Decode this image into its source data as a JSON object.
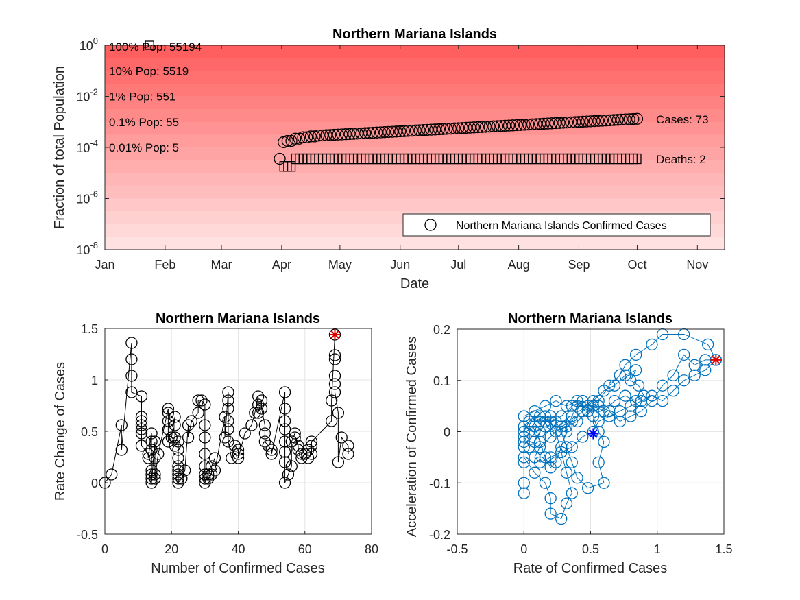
{
  "chart_data": [
    {
      "type": "scatter",
      "title": "Northern Mariana Islands",
      "xlabel": "Date",
      "ylabel": "Fraction of total Population",
      "yscale": "log",
      "ylim": [
        1e-08,
        1
      ],
      "xlim": [
        "2020-01-01",
        "2020-11-15"
      ],
      "x_ticks": [
        "Jan",
        "Feb",
        "Mar",
        "Apr",
        "May",
        "Jun",
        "Jul",
        "Aug",
        "Sep",
        "Oct",
        "Nov"
      ],
      "x_tick_dates": [
        "2020-01-01",
        "2020-02-01",
        "2020-03-01",
        "2020-04-01",
        "2020-05-01",
        "2020-06-01",
        "2020-07-01",
        "2020-08-01",
        "2020-09-01",
        "2020-10-01",
        "2020-11-01"
      ],
      "y_ticks": [
        "10^0",
        "10^-2",
        "10^-4",
        "10^-6",
        "10^-8"
      ],
      "y_tick_values": [
        1,
        0.01,
        0.0001,
        1e-06,
        1e-08
      ],
      "population_bands": [
        {
          "label": "100% Pop: 55194",
          "fraction": 1
        },
        {
          "label": "10% Pop: 5519",
          "fraction": 0.1
        },
        {
          "label": "1% Pop: 551",
          "fraction": 0.01
        },
        {
          "label": "0.1% Pop: 55",
          "fraction": 0.001
        },
        {
          "label": "0.01% Pop: 5",
          "fraction": 0.0001
        }
      ],
      "series": [
        {
          "name": "Northern Mariana Islands Confirmed Cases",
          "marker": "circle",
          "start_date": "2020-03-31",
          "end_date": "2020-09-30",
          "start_value": 3.6e-05,
          "early_values": [
            3.6e-05,
            0.00016,
            0.00018,
            0.00018,
            0.00022,
            0.00022,
            0.00025,
            0.00025,
            0.00027,
            0.00027,
            0.00029
          ],
          "end_value": 0.00132
        },
        {
          "marker": "square",
          "start_date": "2020-04-02",
          "end_date": "2020-09-30",
          "early_values": [
            1.8e-05,
            1.8e-05,
            1.8e-05,
            3.6e-05
          ],
          "end_value": 3.6e-05
        }
      ],
      "annotations": [
        {
          "label": "Cases: 73",
          "value": 0.00132
        },
        {
          "label": "Deaths: 2",
          "value": 3.6e-05
        }
      ],
      "legend": {
        "placement": "bottom-right",
        "entries": [
          "Northern Mariana Islands Confirmed Cases"
        ]
      },
      "grid": false
    },
    {
      "type": "line",
      "title": "Northern Mariana Islands",
      "xlabel": "Number of Confirmed Cases",
      "ylabel": "Rate Change of Cases",
      "xlim": [
        0,
        80
      ],
      "ylim": [
        -0.5,
        1.5
      ],
      "x_ticks": [
        "0",
        "20",
        "40",
        "60",
        "80"
      ],
      "x_tick_values": [
        0,
        20,
        40,
        60,
        80
      ],
      "y_ticks": [
        "-0.5",
        "0",
        "0.5",
        "1",
        "1.5"
      ],
      "y_tick_values": [
        -0.5,
        0,
        0.5,
        1,
        1.5
      ],
      "grid": true,
      "color": "#000000",
      "points": [
        [
          0,
          0
        ],
        [
          2,
          0.08
        ],
        [
          5,
          0.56
        ],
        [
          5,
          0.32
        ],
        [
          8,
          1.36
        ],
        [
          8,
          1.2
        ],
        [
          8,
          1.04
        ],
        [
          8,
          0.88
        ],
        [
          11,
          0.84
        ],
        [
          11,
          0.64
        ],
        [
          11,
          0.6
        ],
        [
          11,
          0.56
        ],
        [
          11,
          0.52
        ],
        [
          11,
          0.48
        ],
        [
          11,
          0.36
        ],
        [
          13,
          0.28
        ],
        [
          13,
          0.24
        ],
        [
          14,
          0.48
        ],
        [
          14,
          0.4
        ],
        [
          14,
          0.32
        ],
        [
          14,
          0.12
        ],
        [
          14,
          0.08
        ],
        [
          14,
          0.04
        ],
        [
          14,
          0
        ],
        [
          15,
          0.4
        ],
        [
          15,
          0.24
        ],
        [
          15,
          0.08
        ],
        [
          15,
          0.04
        ],
        [
          16,
          0.28
        ],
        [
          19,
          0.72
        ],
        [
          19,
          0.68
        ],
        [
          19,
          0.6
        ],
        [
          19,
          0.52
        ],
        [
          19,
          0.4
        ],
        [
          20,
          0.44
        ],
        [
          21,
          0.64
        ],
        [
          21,
          0.56
        ],
        [
          21,
          0.44
        ],
        [
          21,
          0.36
        ],
        [
          22,
          0.4
        ],
        [
          22,
          0.32
        ],
        [
          22,
          0.24
        ],
        [
          22,
          0.16
        ],
        [
          22,
          0.12
        ],
        [
          22,
          0.08
        ],
        [
          22,
          0.04
        ],
        [
          22,
          0
        ],
        [
          23,
          0.04
        ],
        [
          24,
          0.12
        ],
        [
          25,
          0.56
        ],
        [
          25,
          0.44
        ],
        [
          26,
          0.6
        ],
        [
          28,
          0.68
        ],
        [
          28,
          0.8
        ],
        [
          29,
          0.8
        ],
        [
          30,
          0.76
        ],
        [
          30,
          0.56
        ],
        [
          30,
          0.44
        ],
        [
          30,
          0.28
        ],
        [
          30,
          0.16
        ],
        [
          30,
          0.08
        ],
        [
          30,
          0.04
        ],
        [
          30,
          0
        ],
        [
          31,
          0.08
        ],
        [
          31,
          0.04
        ],
        [
          32,
          0.08
        ],
        [
          32,
          0.16
        ],
        [
          33,
          0.24
        ],
        [
          33,
          0.12
        ],
        [
          36,
          0.64
        ],
        [
          36,
          0.44
        ],
        [
          37,
          0.88
        ],
        [
          37,
          0.8
        ],
        [
          37,
          0.72
        ],
        [
          37,
          0.6
        ],
        [
          37,
          0.52
        ],
        [
          37,
          0.4
        ],
        [
          38,
          0.24
        ],
        [
          39,
          0.36
        ],
        [
          40,
          0.32
        ],
        [
          40,
          0.28
        ],
        [
          40,
          0.24
        ],
        [
          42,
          0.48
        ],
        [
          44,
          0.56
        ],
        [
          45,
          0.68
        ],
        [
          46,
          0.84
        ],
        [
          46,
          0.76
        ],
        [
          46,
          0.68
        ],
        [
          47,
          0.8
        ],
        [
          47,
          0.72
        ],
        [
          48,
          0.56
        ],
        [
          48,
          0.48
        ],
        [
          48,
          0.4
        ],
        [
          49,
          0.36
        ],
        [
          50,
          0.32
        ],
        [
          50,
          0.28
        ],
        [
          54,
          0.88
        ],
        [
          54,
          0.72
        ],
        [
          54,
          0.6
        ],
        [
          54,
          0.52
        ],
        [
          54,
          0.4
        ],
        [
          54,
          0.3
        ],
        [
          54,
          0.2
        ],
        [
          54,
          0
        ],
        [
          55,
          0.08
        ],
        [
          56,
          0.16
        ],
        [
          56,
          0.4
        ],
        [
          57,
          0.48
        ],
        [
          57,
          0.44
        ],
        [
          58,
          0.36
        ],
        [
          58,
          0.32
        ],
        [
          59,
          0.28
        ],
        [
          59,
          0.24
        ],
        [
          60,
          0.28
        ],
        [
          61,
          0.32
        ],
        [
          61,
          0.24
        ],
        [
          62,
          0.28
        ],
        [
          62,
          0.36
        ],
        [
          62,
          0.4
        ],
        [
          68,
          0.6
        ],
        [
          68,
          0.8
        ],
        [
          69,
          1.44
        ],
        [
          69,
          1.24
        ],
        [
          69,
          1.2
        ],
        [
          69,
          1.04
        ],
        [
          69,
          0.96
        ],
        [
          69,
          0.88
        ],
        [
          70,
          0.68
        ],
        [
          70,
          0.2
        ],
        [
          71,
          0.44
        ],
        [
          73,
          0.36
        ],
        [
          73,
          0.28
        ]
      ],
      "highlight": [
        69,
        1.44
      ]
    },
    {
      "type": "line",
      "title": "Northern Mariana Islands",
      "xlabel": "Rate of Confirmed Cases",
      "ylabel": "Acceleration of Confirmed Cases",
      "xlim": [
        -0.5,
        1.5
      ],
      "ylim": [
        -0.2,
        0.2
      ],
      "x_ticks": [
        "-0.5",
        "0",
        "0.5",
        "1",
        "1.5"
      ],
      "x_tick_values": [
        -0.5,
        0,
        0.5,
        1,
        1.5
      ],
      "y_ticks": [
        "-0.2",
        "-0.1",
        "0",
        "0.1",
        "0.2"
      ],
      "y_tick_values": [
        -0.2,
        -0.1,
        0,
        0.1,
        0.2
      ],
      "grid": true,
      "color": "#0072BD",
      "points": [
        [
          0,
          -0.12
        ],
        [
          0,
          -0.1
        ],
        [
          0,
          -0.06
        ],
        [
          0,
          -0.03
        ],
        [
          0,
          0
        ],
        [
          0.04,
          0.02
        ],
        [
          0.08,
          0.03
        ],
        [
          0.12,
          0.02
        ],
        [
          0.16,
          0.03
        ],
        [
          0.2,
          0.02
        ],
        [
          0.24,
          0
        ],
        [
          0.28,
          -0.04
        ],
        [
          0.32,
          -0.08
        ],
        [
          0.36,
          -0.12
        ],
        [
          0.32,
          -0.14
        ],
        [
          0.28,
          -0.17
        ],
        [
          0.2,
          -0.16
        ],
        [
          0.2,
          -0.13
        ],
        [
          0.16,
          -0.1
        ],
        [
          0.08,
          -0.08
        ],
        [
          0,
          -0.05
        ],
        [
          0,
          -0.02
        ],
        [
          0.04,
          0
        ],
        [
          0.08,
          0.01
        ],
        [
          0.12,
          -0.02
        ],
        [
          0.16,
          -0.05
        ],
        [
          0.2,
          -0.07
        ],
        [
          0.24,
          -0.06
        ],
        [
          0.28,
          -0.03
        ],
        [
          0.32,
          0
        ],
        [
          0.36,
          0.03
        ],
        [
          0.4,
          0.05
        ],
        [
          0.44,
          0.06
        ],
        [
          0.48,
          0.05
        ],
        [
          0.52,
          0.03
        ],
        [
          0.56,
          0
        ],
        [
          0.6,
          -0.02
        ],
        [
          0.56,
          -0.06
        ],
        [
          0.6,
          -0.1
        ],
        [
          0.48,
          -0.11
        ],
        [
          0.4,
          -0.09
        ],
        [
          0.36,
          -0.06
        ],
        [
          0.32,
          -0.03
        ],
        [
          0.28,
          0
        ],
        [
          0.24,
          0.02
        ],
        [
          0.2,
          0.03
        ],
        [
          0.16,
          0.02
        ],
        [
          0.12,
          0
        ],
        [
          0.08,
          -0.02
        ],
        [
          0.04,
          -0.03
        ],
        [
          0,
          -0.01
        ],
        [
          0,
          0.01
        ],
        [
          0.04,
          0.02
        ],
        [
          0.12,
          0.03
        ],
        [
          0.2,
          0.02
        ],
        [
          0.28,
          0.03
        ],
        [
          0.36,
          0.05
        ],
        [
          0.44,
          0.06
        ],
        [
          0.52,
          0.05
        ],
        [
          0.6,
          0.04
        ],
        [
          0.68,
          0.06
        ],
        [
          0.76,
          0.07
        ],
        [
          0.84,
          0.06
        ],
        [
          0.9,
          0.07
        ],
        [
          0.86,
          0.09
        ],
        [
          0.8,
          0.1
        ],
        [
          0.84,
          0.12
        ],
        [
          0.76,
          0.11
        ],
        [
          0.68,
          0.09
        ],
        [
          0.6,
          0.08
        ],
        [
          0.52,
          0.06
        ],
        [
          0.44,
          0.04
        ],
        [
          0.36,
          0.02
        ],
        [
          0.28,
          0.01
        ],
        [
          0.2,
          -0.01
        ],
        [
          0.12,
          -0.03
        ],
        [
          0.08,
          -0.05
        ],
        [
          0.12,
          -0.06
        ],
        [
          0.2,
          -0.05
        ],
        [
          0.28,
          -0.04
        ],
        [
          0.36,
          -0.03
        ],
        [
          0.44,
          -0.01
        ],
        [
          0.52,
          0
        ],
        [
          0.56,
          0.02
        ],
        [
          0.64,
          0.03
        ],
        [
          0.72,
          0.04
        ],
        [
          0.8,
          0.05
        ],
        [
          0.88,
          0.06
        ],
        [
          0.96,
          0.07
        ],
        [
          1.04,
          0.06
        ],
        [
          1.12,
          0.08
        ],
        [
          1.2,
          0.1
        ],
        [
          1.28,
          0.11
        ],
        [
          1.36,
          0.12
        ],
        [
          1.44,
          0.14
        ],
        [
          1.38,
          0.17
        ],
        [
          1.2,
          0.19
        ],
        [
          1.04,
          0.19
        ],
        [
          0.96,
          0.17
        ],
        [
          0.84,
          0.15
        ],
        [
          0.76,
          0.13
        ],
        [
          0.72,
          0.11
        ],
        [
          0.64,
          0.09
        ],
        [
          0.56,
          0.06
        ],
        [
          0.48,
          0.04
        ],
        [
          0.4,
          0.02
        ],
        [
          0.32,
          0.01
        ],
        [
          0.24,
          0
        ],
        [
          0.16,
          0.01
        ],
        [
          0.08,
          0
        ],
        [
          0,
          0.01
        ],
        [
          0,
          0.03
        ],
        [
          0.08,
          0.04
        ],
        [
          0.16,
          0.05
        ],
        [
          0.24,
          0.06
        ],
        [
          0.32,
          0.05
        ],
        [
          0.4,
          0.06
        ],
        [
          0.48,
          0.04
        ],
        [
          0.56,
          0.05
        ],
        [
          0.64,
          0.04
        ],
        [
          0.72,
          0.02
        ],
        [
          0.8,
          0.03
        ],
        [
          0.88,
          0.04
        ],
        [
          0.96,
          0.06
        ],
        [
          1.04,
          0.09
        ],
        [
          1.12,
          0.11
        ],
        [
          1.2,
          0.15
        ],
        [
          1.28,
          0.13
        ],
        [
          1.36,
          0.14
        ],
        [
          1.44,
          0.14
        ]
      ],
      "highlight": [
        1.44,
        0.14
      ],
      "current": [
        0.52,
        -0.004
      ]
    }
  ]
}
